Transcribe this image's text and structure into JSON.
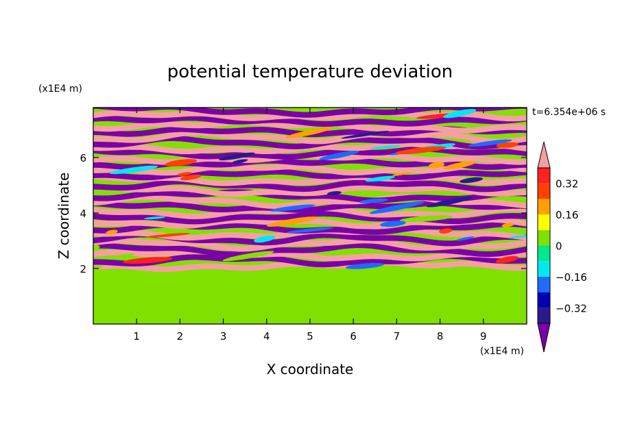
{
  "chart_data": {
    "type": "heatmap",
    "title": "potential temperature deviation",
    "xlabel": "X coordinate",
    "ylabel": "Z coordinate",
    "x_unit": "(x1E4 m)",
    "y_unit": "(x1E4 m)",
    "time_label": "t=6.354e+06 s",
    "xlim": [
      0,
      10
    ],
    "ylim": [
      0,
      7.8
    ],
    "x_ticks": [
      "1",
      "2",
      "3",
      "4",
      "5",
      "6",
      "7",
      "8",
      "9"
    ],
    "y_ticks": [
      "2",
      "4",
      "6"
    ],
    "x_tick_values": [
      1,
      2,
      3,
      4,
      5,
      6,
      7,
      8,
      9
    ],
    "y_tick_values": [
      2,
      4,
      6
    ],
    "colorbar": {
      "levels": [
        -0.4,
        -0.32,
        -0.24,
        -0.16,
        -0.08,
        0,
        0.08,
        0.16,
        0.24,
        0.32,
        0.4
      ],
      "tick_labels": [
        "0.32",
        "0.16",
        "0",
        "−0.16",
        "−0.32"
      ],
      "tick_values": [
        0.32,
        0.16,
        0,
        -0.16,
        -0.32
      ],
      "extend": "both",
      "colors": [
        "#7a00a8",
        "#2a1a8c",
        "#0000b4",
        "#1e6cff",
        "#00e8f0",
        "#00e890",
        "#80e000",
        "#ffff00",
        "#ffa000",
        "#ff4000",
        "#ff2020",
        "#f5a0a0"
      ]
    },
    "regions": [
      {
        "z_range": [
          0,
          2.0
        ],
        "description": "near-zero deviation, mix of 0 to 0.08 levels"
      },
      {
        "z_range": [
          2.0,
          7.8
        ],
        "description": "alternating horizontal layers of strong positive (>0.4) and strong negative (<-0.4) deviation"
      }
    ]
  }
}
